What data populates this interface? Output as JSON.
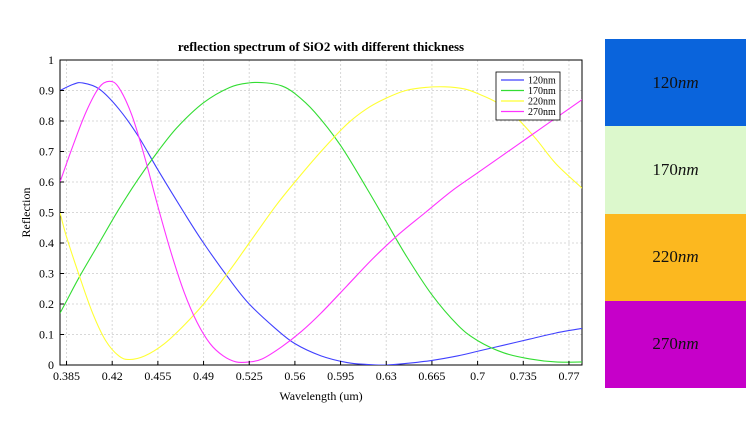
{
  "chart_data": {
    "type": "line",
    "title": "reflection spectrum of SiO2 with different thickness",
    "xlabel": "Wavelength (um)",
    "ylabel": "Reflection",
    "xlim": [
      0.38,
      0.78
    ],
    "ylim": [
      0,
      1
    ],
    "xticks": [
      0.385,
      0.42,
      0.455,
      0.49,
      0.525,
      0.56,
      0.595,
      0.63,
      0.665,
      0.7,
      0.735,
      0.77
    ],
    "xtick_labels": [
      "0.385",
      "0.42",
      "0.455",
      "0.49",
      "0.525",
      "0.56",
      "0.595",
      "0.63",
      "0.665",
      "0.7",
      "0.735",
      "0.77"
    ],
    "yticks": [
      0,
      0.1,
      0.2,
      0.3,
      0.4,
      0.5,
      0.6,
      0.7,
      0.8,
      0.9,
      1
    ],
    "ytick_labels": [
      "0",
      "0.1",
      "0.2",
      "0.3",
      "0.4",
      "0.5",
      "0.6",
      "0.7",
      "0.8",
      "0.9",
      "1"
    ],
    "grid": true,
    "legend_position": "top-right",
    "series": [
      {
        "name": "120nm",
        "color": "#4040ff",
        "x": [
          0.38,
          0.39,
          0.397,
          0.41,
          0.425,
          0.44,
          0.455,
          0.475,
          0.49,
          0.51,
          0.525,
          0.545,
          0.56,
          0.58,
          0.6,
          0.615,
          0.63,
          0.645,
          0.665,
          0.685,
          0.7,
          0.72,
          0.74,
          0.76,
          0.78
        ],
        "y": [
          0.9,
          0.92,
          0.925,
          0.905,
          0.84,
          0.75,
          0.64,
          0.5,
          0.4,
          0.28,
          0.2,
          0.12,
          0.07,
          0.03,
          0.008,
          0.002,
          0.0,
          0.005,
          0.015,
          0.03,
          0.045,
          0.065,
          0.085,
          0.105,
          0.12
        ]
      },
      {
        "name": "170nm",
        "color": "#33dd33",
        "x": [
          0.38,
          0.385,
          0.395,
          0.41,
          0.425,
          0.44,
          0.455,
          0.47,
          0.49,
          0.51,
          0.525,
          0.538,
          0.55,
          0.56,
          0.575,
          0.595,
          0.615,
          0.63,
          0.645,
          0.665,
          0.685,
          0.7,
          0.72,
          0.74,
          0.76,
          0.78
        ],
        "y": [
          0.17,
          0.21,
          0.29,
          0.4,
          0.51,
          0.61,
          0.7,
          0.78,
          0.86,
          0.91,
          0.925,
          0.925,
          0.915,
          0.89,
          0.83,
          0.72,
          0.58,
          0.47,
          0.36,
          0.23,
          0.13,
          0.08,
          0.04,
          0.02,
          0.01,
          0.01
        ]
      },
      {
        "name": "220nm",
        "color": "#ffff33",
        "x": [
          0.38,
          0.385,
          0.395,
          0.405,
          0.415,
          0.425,
          0.433,
          0.445,
          0.46,
          0.475,
          0.49,
          0.51,
          0.525,
          0.545,
          0.56,
          0.58,
          0.6,
          0.615,
          0.63,
          0.645,
          0.66,
          0.675,
          0.69,
          0.7,
          0.715,
          0.73,
          0.745,
          0.76,
          0.78
        ],
        "y": [
          0.5,
          0.42,
          0.29,
          0.17,
          0.08,
          0.03,
          0.018,
          0.03,
          0.07,
          0.13,
          0.2,
          0.31,
          0.4,
          0.52,
          0.6,
          0.7,
          0.79,
          0.84,
          0.875,
          0.9,
          0.91,
          0.912,
          0.905,
          0.89,
          0.86,
          0.81,
          0.74,
          0.66,
          0.58
        ]
      },
      {
        "name": "270nm",
        "color": "#ff33ff",
        "x": [
          0.38,
          0.39,
          0.4,
          0.41,
          0.418,
          0.425,
          0.435,
          0.445,
          0.455,
          0.465,
          0.475,
          0.485,
          0.495,
          0.505,
          0.515,
          0.525,
          0.535,
          0.55,
          0.565,
          0.58,
          0.6,
          0.62,
          0.64,
          0.66,
          0.68,
          0.7,
          0.72,
          0.74,
          0.76,
          0.78
        ],
        "y": [
          0.6,
          0.72,
          0.83,
          0.91,
          0.93,
          0.91,
          0.82,
          0.68,
          0.52,
          0.37,
          0.24,
          0.14,
          0.07,
          0.03,
          0.01,
          0.01,
          0.02,
          0.06,
          0.11,
          0.17,
          0.26,
          0.35,
          0.43,
          0.5,
          0.57,
          0.63,
          0.69,
          0.75,
          0.81,
          0.87
        ]
      }
    ]
  },
  "swatches": [
    {
      "value": "120",
      "unit": "nm",
      "color": "#0a64dc"
    },
    {
      "value": "170",
      "unit": "nm",
      "color": "#dcf8cc"
    },
    {
      "value": "220",
      "unit": "nm",
      "color": "#fcb81f"
    },
    {
      "value": "270",
      "unit": "nm",
      "color": "#c600c9"
    }
  ]
}
